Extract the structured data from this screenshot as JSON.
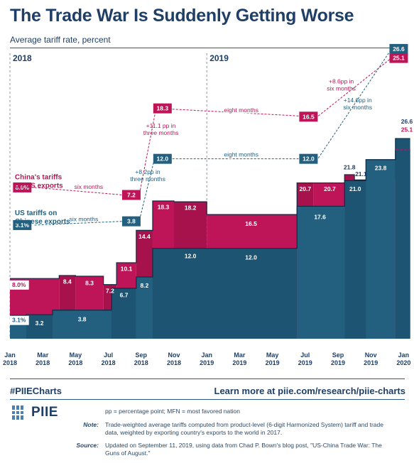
{
  "header": {
    "title": "The Trade War Is Suddenly Getting Worse",
    "subtitle": "Average tariff rate, percent"
  },
  "footer": {
    "hashtag": "#PIIECharts",
    "learn_more": "Learn more at piie.com/research/piie-charts",
    "logo": "PIIE",
    "legend_note": "pp = percentage point; MFN = most favored nation",
    "note_label": "Note:",
    "note_text": "Trade-weighted average tariffs computed from product-level (6-digit Harmonized System) tariff and trade data, weighted by exporting country's exports to the world in 2017.",
    "source_label": "Source:",
    "source_text": "Updated on September 11, 2019, using data from Chad P. Bown's blog post, \"US-China Trade War: The Guns of August.\""
  },
  "colors": {
    "china": "#be1558",
    "us": "#235f7e",
    "navy": "#1f3f66"
  },
  "chart_data": {
    "type": "area",
    "ylim": [
      0,
      27
    ],
    "year_labels": [
      {
        "text": "2018",
        "x": 0
      },
      {
        "text": "2019",
        "x": 12
      }
    ],
    "x_ticks": [
      {
        "x": 0,
        "l1": "Jan",
        "l2": "2018"
      },
      {
        "x": 2,
        "l1": "Mar",
        "l2": "2018"
      },
      {
        "x": 4,
        "l1": "May",
        "l2": "2018"
      },
      {
        "x": 6,
        "l1": "Jul",
        "l2": "2018"
      },
      {
        "x": 8,
        "l1": "Sep",
        "l2": "2018"
      },
      {
        "x": 10,
        "l1": "Nov",
        "l2": "2018"
      },
      {
        "x": 12,
        "l1": "Jan",
        "l2": "2019"
      },
      {
        "x": 14,
        "l1": "Mar",
        "l2": "2019"
      },
      {
        "x": 16,
        "l1": "May",
        "l2": "2019"
      },
      {
        "x": 18,
        "l1": "Jul",
        "l2": "2019"
      },
      {
        "x": 20,
        "l1": "Sep",
        "l2": "2019"
      },
      {
        "x": 22,
        "l1": "Nov",
        "l2": "2019"
      },
      {
        "x": 24,
        "l1": "Jan",
        "l2": "2020"
      }
    ],
    "series": [
      {
        "name": "China's tariffs on US exports",
        "key": "china",
        "steps": [
          {
            "x0": 0,
            "x1": 3,
            "v": 8.0
          },
          {
            "x0": 3,
            "x1": 4,
            "v": 8.4
          },
          {
            "x0": 4,
            "x1": 5.7,
            "v": 8.3
          },
          {
            "x0": 5.7,
            "x1": 6.5,
            "v": 7.2
          },
          {
            "x0": 6.5,
            "x1": 7.7,
            "v": 10.1
          },
          {
            "x0": 7.7,
            "x1": 8.7,
            "v": 14.4
          },
          {
            "x0": 8.7,
            "x1": 10,
            "v": 18.3
          },
          {
            "x0": 10,
            "x1": 12,
            "v": 18.2
          },
          {
            "x0": 12,
            "x1": 17.5,
            "v": 16.5
          },
          {
            "x0": 17.5,
            "x1": 18.5,
            "v": 20.7
          },
          {
            "x0": 18.5,
            "x1": 20.4,
            "v": 20.7
          },
          {
            "x0": 20.4,
            "x1": 21,
            "v": 21.8
          },
          {
            "x0": 21,
            "x1": 23.5,
            "v": 21.1
          },
          {
            "x0": 23.5,
            "x1": 24.4,
            "v": 25.1
          }
        ]
      },
      {
        "name": "US tariffs on Chinese exports",
        "key": "us",
        "steps": [
          {
            "x0": 0,
            "x1": 1,
            "v": 3.1
          },
          {
            "x0": 1,
            "x1": 2.6,
            "v": 3.2
          },
          {
            "x0": 2.6,
            "x1": 6.2,
            "v": 3.8
          },
          {
            "x0": 6.2,
            "x1": 7.7,
            "v": 6.7
          },
          {
            "x0": 7.7,
            "x1": 8.7,
            "v": 8.2
          },
          {
            "x0": 8.7,
            "x1": 17.5,
            "v": 12.0
          },
          {
            "x0": 17.5,
            "x1": 20.4,
            "v": 17.6
          },
          {
            "x0": 20.4,
            "x1": 21.7,
            "v": 21.0
          },
          {
            "x0": 21.7,
            "x1": 23.5,
            "v": 23.8
          },
          {
            "x0": 23.5,
            "x1": 24.4,
            "v": 26.6
          }
        ]
      }
    ],
    "bar_labels": [
      {
        "text": "8.0%",
        "x": 0.55,
        "v": 6.9,
        "boxed": true,
        "key": "china"
      },
      {
        "text": "8.4",
        "x": 3.5,
        "v": 7.3
      },
      {
        "text": "8.3",
        "x": 4.85,
        "v": 7.1
      },
      {
        "text": "7.2",
        "x": 6.1,
        "v": 6.1
      },
      {
        "text": "10.1",
        "x": 7.1,
        "v": 9.0
      },
      {
        "text": "14.4",
        "x": 8.2,
        "v": 13.3
      },
      {
        "text": "18.3",
        "x": 9.35,
        "v": 17.2
      },
      {
        "text": "18.2",
        "x": 11.0,
        "v": 17.1
      },
      {
        "text": "16.5",
        "x": 14.7,
        "v": 15.0
      },
      {
        "text": "20.7",
        "x": 18.0,
        "v": 19.6
      },
      {
        "text": "20.7",
        "x": 19.5,
        "v": 19.6
      },
      {
        "text": "21.8",
        "x": 20.7,
        "v": 22.5,
        "dark": true
      },
      {
        "text": "21.1",
        "x": 21.4,
        "v": 21.6,
        "dark": true
      },
      {
        "text": "3.1%",
        "x": 0.55,
        "v": 2.2,
        "boxed": true,
        "key": "us"
      },
      {
        "text": "3.2",
        "x": 1.8,
        "v": 1.8
      },
      {
        "text": "3.8",
        "x": 4.4,
        "v": 2.3
      },
      {
        "text": "6.7",
        "x": 6.95,
        "v": 5.5
      },
      {
        "text": "8.2",
        "x": 8.2,
        "v": 6.8
      },
      {
        "text": "12.0",
        "x": 11.0,
        "v": 10.7
      },
      {
        "text": "12.0",
        "x": 14.7,
        "v": 10.5
      },
      {
        "text": "17.6",
        "x": 18.9,
        "v": 15.9
      },
      {
        "text": "21.0",
        "x": 21.05,
        "v": 19.6
      },
      {
        "text": "23.8",
        "x": 22.6,
        "v": 22.4
      },
      {
        "text": "26.6",
        "x": 24.2,
        "v": 28.6,
        "dark": true
      },
      {
        "text": "25.1",
        "x": 24.2,
        "v": 27.5,
        "key": "china_text"
      }
    ],
    "annotations": {
      "series_labels": [
        {
          "line1": "China's tariffs",
          "line2": "on US exports",
          "x": 0.3,
          "v": 21.2,
          "key": "china"
        },
        {
          "line1": "US tariffs on",
          "line2": "Chinese exports",
          "x": 0.3,
          "v": 16.4,
          "key": "us"
        }
      ],
      "boxes": [
        {
          "text": "8.0%",
          "x": 0.75,
          "v": 20.1,
          "key": "china"
        },
        {
          "text": "7.2",
          "x": 7.4,
          "v": 19.1,
          "key": "china"
        },
        {
          "text": "18.3",
          "x": 9.3,
          "v": 30.6,
          "key": "china"
        },
        {
          "text": "16.5",
          "x": 18.2,
          "v": 29.5,
          "key": "china"
        },
        {
          "text": "25.1",
          "x": 23.7,
          "v": 37.3,
          "key": "china"
        },
        {
          "text": "3.1%",
          "x": 0.75,
          "v": 15.1,
          "key": "us"
        },
        {
          "text": "3.8",
          "x": 7.4,
          "v": 15.6,
          "key": "us"
        },
        {
          "text": "12.0",
          "x": 9.3,
          "v": 23.9,
          "key": "us"
        },
        {
          "text": "12.0",
          "x": 18.2,
          "v": 23.9,
          "key": "us"
        },
        {
          "text": "26.6",
          "x": 23.7,
          "v": 38.5,
          "key": "us"
        }
      ],
      "connectors": [
        {
          "x0": 1.5,
          "v0": 20.1,
          "x1": 6.9,
          "v1": 19.1,
          "key": "china",
          "label": "six months",
          "lx": 4.8,
          "lv": 19.9
        },
        {
          "x0": 7.9,
          "v0": 19.3,
          "x1": 8.9,
          "v1": 30.5,
          "key": "china",
          "label": "",
          "lx": 0,
          "lv": 0
        },
        {
          "x0": 9.9,
          "v0": 30.5,
          "x1": 17.6,
          "v1": 29.6,
          "key": "china",
          "label": "eight months",
          "lx": 14.1,
          "lv": 30.1
        },
        {
          "x0": 18.8,
          "v0": 29.6,
          "x1": 23.2,
          "v1": 37.2,
          "key": "china",
          "label": "",
          "lx": 0,
          "lv": 0
        },
        {
          "x0": 1.5,
          "v0": 15.1,
          "x1": 6.9,
          "v1": 15.6,
          "key": "us",
          "label": "six months",
          "lx": 4.5,
          "lv": 15.6
        },
        {
          "x0": 7.9,
          "v0": 15.8,
          "x1": 8.8,
          "v1": 23.8,
          "key": "us",
          "label": "",
          "lx": 0,
          "lv": 0
        },
        {
          "x0": 9.9,
          "v0": 23.9,
          "x1": 17.6,
          "v1": 23.9,
          "key": "us",
          "label": "eight months",
          "lx": 14.1,
          "lv": 24.2
        },
        {
          "x0": 18.8,
          "v0": 24.0,
          "x1": 23.2,
          "v1": 38.3,
          "key": "us",
          "label": "",
          "lx": 0,
          "lv": 0
        }
      ],
      "notes": [
        {
          "lines": [
            "+11.1 pp in",
            "three months"
          ],
          "x": 9.2,
          "v": 28.0,
          "key": "china"
        },
        {
          "lines": [
            "+8.2pp in",
            "three months"
          ],
          "x": 8.4,
          "v": 21.9,
          "key": "us"
        },
        {
          "lines": [
            "+8.6pp in",
            "six months"
          ],
          "x": 20.2,
          "v": 33.9,
          "key": "china"
        },
        {
          "lines": [
            "+14.6pp in",
            "six months"
          ],
          "x": 21.2,
          "v": 31.4,
          "key": "us"
        }
      ]
    }
  }
}
